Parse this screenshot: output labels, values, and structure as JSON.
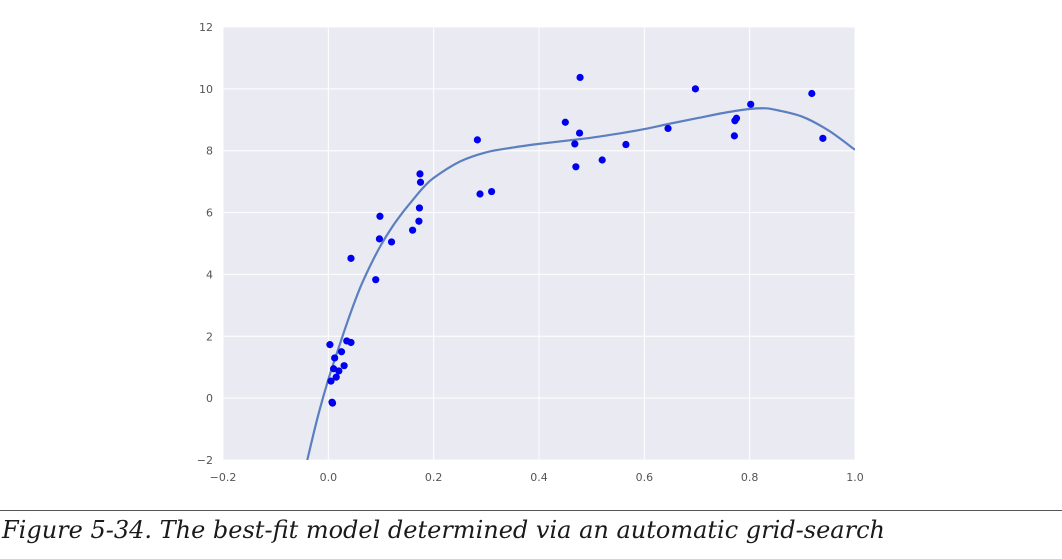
{
  "caption": "Figure 5-34. The best-fit model determined via an automatic grid-search",
  "chart_data": {
    "type": "scatter",
    "title": "",
    "xlabel": "",
    "ylabel": "",
    "xlim": [
      -0.2,
      1.0
    ],
    "ylim": [
      -2,
      12
    ],
    "xticks": [
      -0.2,
      0.0,
      0.2,
      0.4,
      0.6,
      0.8,
      1.0
    ],
    "xtick_labels": [
      "−0.2",
      "0.0",
      "0.2",
      "0.4",
      "0.6",
      "0.8",
      "1.0"
    ],
    "yticks": [
      -2,
      0,
      2,
      4,
      6,
      8,
      10,
      12
    ],
    "ytick_labels": [
      "−2",
      "0",
      "2",
      "4",
      "6",
      "8",
      "10",
      "12"
    ],
    "grid": true,
    "background_color": "#eaeaf2",
    "grid_color": "#ffffff",
    "point_color": "#0000ee",
    "line_color": "#5b7fbf",
    "scatter": {
      "x": [
        0.003,
        0.005,
        0.007,
        0.008,
        0.01,
        0.012,
        0.015,
        0.02,
        0.025,
        0.03,
        0.035,
        0.043,
        0.043,
        0.09,
        0.097,
        0.098,
        0.12,
        0.16,
        0.172,
        0.173,
        0.174,
        0.175,
        0.283,
        0.288,
        0.31,
        0.45,
        0.468,
        0.47,
        0.477,
        0.478,
        0.52,
        0.565,
        0.645,
        0.697,
        0.771,
        0.772,
        0.775,
        0.802,
        0.918,
        0.939
      ],
      "y": [
        1.73,
        0.55,
        -0.13,
        -0.16,
        0.95,
        1.3,
        0.68,
        0.88,
        1.5,
        1.05,
        1.85,
        1.8,
        4.52,
        3.83,
        5.15,
        5.88,
        5.05,
        5.43,
        5.72,
        6.15,
        7.25,
        6.98,
        8.35,
        6.6,
        6.68,
        8.92,
        8.22,
        7.48,
        8.57,
        10.37,
        7.7,
        8.2,
        8.72,
        10.0,
        8.48,
        8.97,
        9.05,
        9.5,
        9.85,
        8.4
      ]
    },
    "fit_curve": {
      "x": [
        -0.04,
        -0.02,
        0.0,
        0.02,
        0.04,
        0.06,
        0.08,
        0.1,
        0.12,
        0.14,
        0.16,
        0.18,
        0.2,
        0.25,
        0.3,
        0.35,
        0.4,
        0.45,
        0.5,
        0.55,
        0.6,
        0.65,
        0.7,
        0.75,
        0.8,
        0.83,
        0.85,
        0.9,
        0.95,
        1.0
      ],
      "y": [
        -2.0,
        -0.6,
        0.6,
        1.65,
        2.65,
        3.55,
        4.3,
        4.95,
        5.5,
        5.98,
        6.4,
        6.8,
        7.12,
        7.65,
        7.95,
        8.1,
        8.22,
        8.32,
        8.42,
        8.55,
        8.7,
        8.88,
        9.05,
        9.22,
        9.35,
        9.37,
        9.32,
        9.1,
        8.65,
        8.03
      ]
    }
  }
}
